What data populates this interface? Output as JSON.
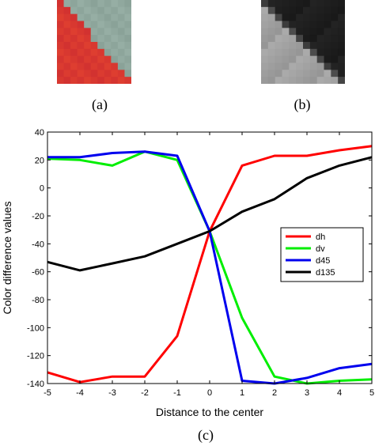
{
  "subfigures": {
    "a": {
      "caption": "(a)"
    },
    "b": {
      "caption": "(b)"
    },
    "c": {
      "caption": "(c)"
    }
  },
  "chart_data": {
    "type": "line",
    "title": "",
    "xlabel": "Distance to the center",
    "ylabel": "Color difference values",
    "xlim": [
      -5,
      5
    ],
    "ylim": [
      -140,
      40
    ],
    "x": [
      -5,
      -4,
      -3,
      -2,
      -1,
      0,
      1,
      2,
      3,
      4,
      5
    ],
    "xticks": [
      -5,
      -4,
      -3,
      -2,
      -1,
      0,
      1,
      2,
      3,
      4,
      5
    ],
    "yticks": [
      -140,
      -120,
      -100,
      -80,
      -60,
      -40,
      -20,
      0,
      20,
      40
    ],
    "grid": false,
    "legend_position": "right",
    "series": [
      {
        "name": "dh",
        "color": "#ff0000",
        "values": [
          -132,
          -139,
          -135,
          -135,
          -106,
          -31,
          16,
          23,
          23,
          27,
          30
        ]
      },
      {
        "name": "dv",
        "color": "#00ee00",
        "values": [
          21,
          20,
          16,
          26,
          20,
          -31,
          -93,
          -135,
          -140,
          -138,
          -137
        ]
      },
      {
        "name": "d45",
        "color": "#0000ee",
        "values": [
          22,
          22,
          25,
          26,
          23,
          -31,
          -138,
          -140,
          -136,
          -129,
          -126
        ]
      },
      {
        "name": "d135",
        "color": "#000000",
        "values": [
          -53,
          -59,
          -54,
          -49,
          -40,
          -31,
          -17,
          -8,
          7,
          16,
          22
        ]
      }
    ]
  }
}
